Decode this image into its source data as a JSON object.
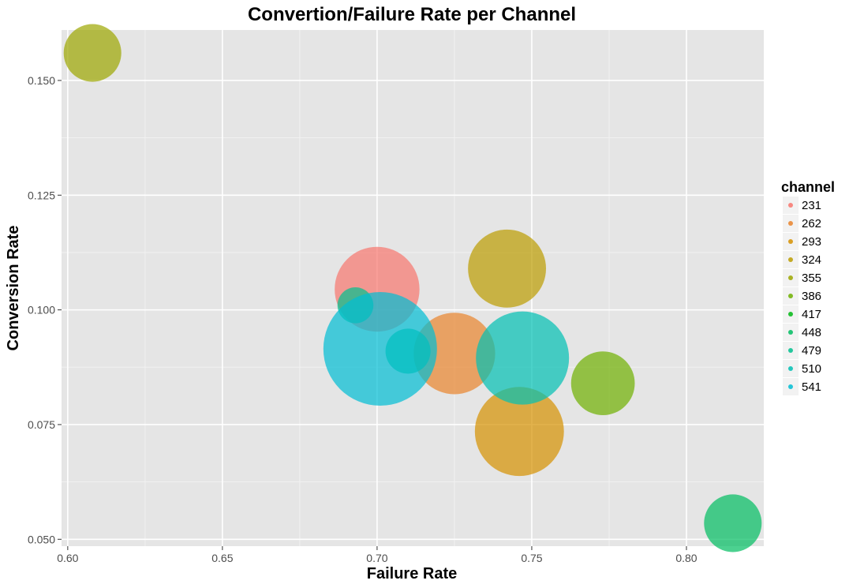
{
  "chart_data": {
    "type": "scatter",
    "variant": "bubble",
    "title": "Convertion/Failure Rate per Channel",
    "xlabel": "Failure Rate",
    "ylabel": "Conversion Rate",
    "xlim": [
      0.598,
      0.825
    ],
    "ylim": [
      0.0485,
      0.161
    ],
    "xticks": [
      0.6,
      0.65,
      0.7,
      0.75,
      0.8
    ],
    "xtick_labels": [
      "0.60",
      "0.65",
      "0.70",
      "0.75",
      "0.80"
    ],
    "yticks": [
      0.05,
      0.075,
      0.1,
      0.125,
      0.15
    ],
    "ytick_labels": [
      "0.050",
      "0.075",
      "0.100",
      "0.125",
      "0.150"
    ],
    "grid": true,
    "background": "#e5e5e5",
    "legend": {
      "title": "channel",
      "position": "right",
      "entries": [
        "231",
        "262",
        "293",
        "324",
        "355",
        "386",
        "417",
        "448",
        "479",
        "510",
        "541"
      ]
    },
    "colors": {
      "231": "#f8766d",
      "262": "#e9842c",
      "293": "#d69100",
      "324": "#bc9d00",
      "355": "#9ca700",
      "386": "#6fb000",
      "417": "#00b813",
      "448": "#00bd61",
      "479": "#00c08e",
      "510": "#00c0b4",
      "541": "#00bdd4"
    },
    "points": [
      {
        "channel": "231",
        "x": 0.7,
        "y": 0.1045,
        "size": 0.39
      },
      {
        "channel": "262",
        "x": 0.725,
        "y": 0.0905,
        "size": 0.36
      },
      {
        "channel": "293",
        "x": 0.746,
        "y": 0.0735,
        "size": 0.43
      },
      {
        "channel": "324",
        "x": 0.742,
        "y": 0.109,
        "size": 0.33
      },
      {
        "channel": "355",
        "x": 0.608,
        "y": 0.156,
        "size": 0.18
      },
      {
        "channel": "386",
        "x": 0.773,
        "y": 0.084,
        "size": 0.22
      },
      {
        "channel": "448",
        "x": 0.815,
        "y": 0.0535,
        "size": 0.18
      },
      {
        "channel": "479",
        "x": 0.693,
        "y": 0.101,
        "size": 0.07
      },
      {
        "channel": "479",
        "x": 0.71,
        "y": 0.091,
        "size": 0.11
      },
      {
        "channel": "510",
        "x": 0.747,
        "y": 0.0895,
        "size": 0.47
      },
      {
        "channel": "541",
        "x": 0.701,
        "y": 0.0915,
        "size": 0.7
      }
    ]
  }
}
